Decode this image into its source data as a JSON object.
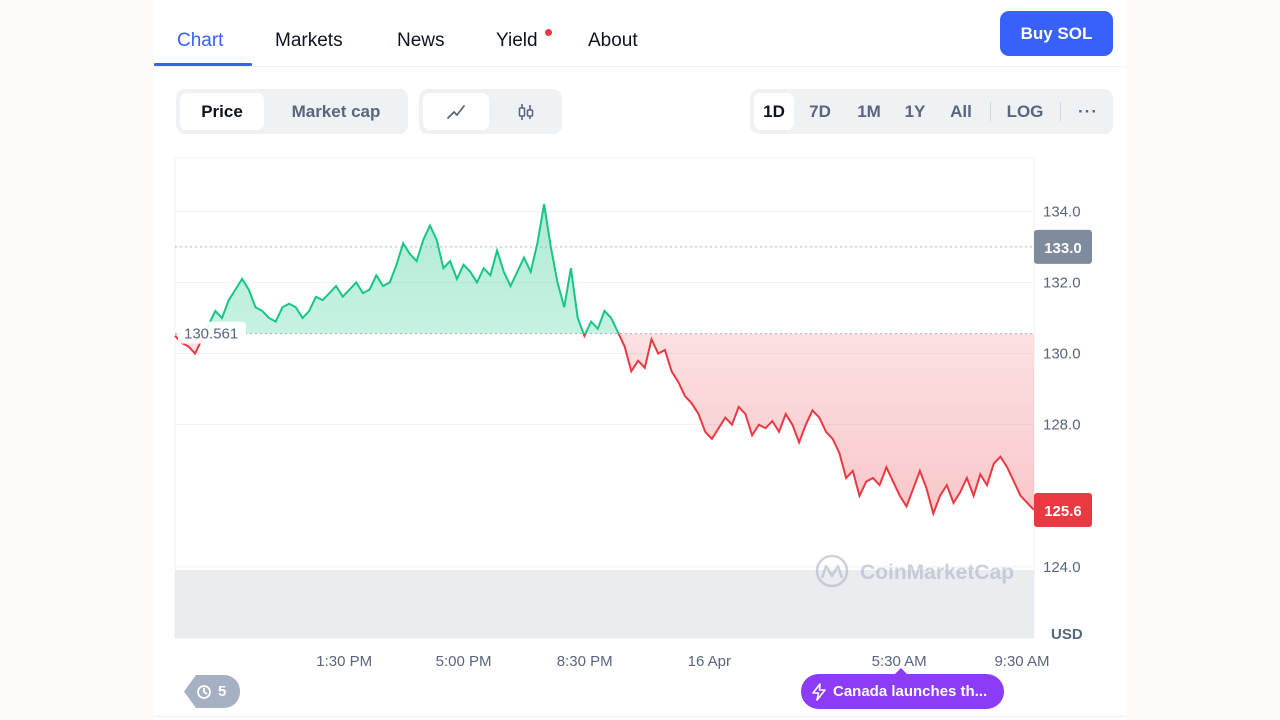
{
  "nav": {
    "tabs": [
      "Chart",
      "Markets",
      "News",
      "Yield",
      "About"
    ],
    "active_tab": "Chart",
    "buy_button": "Buy SOL"
  },
  "toolbar": {
    "metric_options": [
      "Price",
      "Market cap"
    ],
    "metric_selected": "Price",
    "chart_type_icons": [
      "line-chart-icon",
      "candlestick-icon"
    ],
    "chart_type_selected": "line-chart-icon",
    "ranges": [
      "1D",
      "7D",
      "1M",
      "1Y",
      "All"
    ],
    "range_selected": "1D",
    "log_label": "LOG",
    "more_label": "···"
  },
  "chart_data": {
    "type": "line",
    "reference_value": 130.561,
    "reference_label": "130.561",
    "current_price": 125.6,
    "current_price_label": "125.6",
    "hover_price": 133.0,
    "hover_price_label": "133.0",
    "y_ticks": [
      "134.0",
      "132.0",
      "130.0",
      "128.0",
      "124.0"
    ],
    "y_unit": "USD",
    "x_ticks": [
      "1:30 PM",
      "5:00 PM",
      "8:30 PM",
      "16 Apr",
      "5:30 AM",
      "9:30 AM"
    ],
    "ylim": [
      122.0,
      135.5
    ],
    "watermark": "CoinMarketCap",
    "colors": {
      "up": "#16c784",
      "down": "#ea3943",
      "grid": "#eff2f5"
    },
    "series": [
      {
        "values": [
          130.5,
          130.3,
          130.2,
          130.0,
          130.4,
          130.8,
          131.2,
          131.0,
          131.5,
          131.8,
          132.1,
          131.8,
          131.3,
          131.2,
          131.0,
          130.9,
          131.3,
          131.4,
          131.3,
          131.0,
          131.2,
          131.6,
          131.5,
          131.7,
          131.9,
          131.6,
          131.8,
          132.0,
          131.7,
          131.8,
          132.2,
          131.9,
          132.0,
          132.5,
          133.1,
          132.8,
          132.6,
          133.2,
          133.6,
          133.2,
          132.4,
          132.6,
          132.1,
          132.5,
          132.3,
          132.0,
          132.4,
          132.2,
          132.9,
          132.3,
          131.9,
          132.3,
          132.7,
          132.3,
          133.1,
          134.2,
          133.0,
          132.0,
          131.3,
          132.4,
          131.0,
          130.5,
          130.9,
          130.7,
          131.2,
          131.0,
          130.6,
          130.2,
          129.5,
          129.8,
          129.6,
          130.4,
          130.0,
          130.1,
          129.5,
          129.2,
          128.8,
          128.6,
          128.3,
          127.8,
          127.6,
          127.9,
          128.2,
          128.0,
          128.5,
          128.3,
          127.7,
          128.0,
          127.9,
          128.1,
          127.8,
          128.3,
          128.0,
          127.5,
          128.0,
          128.4,
          128.2,
          127.8,
          127.6,
          127.2,
          126.5,
          126.7,
          126.0,
          126.4,
          126.5,
          126.3,
          126.8,
          126.4,
          126.0,
          125.7,
          126.2,
          126.7,
          126.2,
          125.5,
          126.0,
          126.3,
          125.8,
          126.1,
          126.5,
          126.0,
          126.6,
          126.3,
          126.9,
          127.1,
          126.8,
          126.4,
          126.0,
          125.8,
          125.6
        ]
      }
    ]
  },
  "footer": {
    "history_count": "5",
    "news_chip": "Canada launches th..."
  }
}
